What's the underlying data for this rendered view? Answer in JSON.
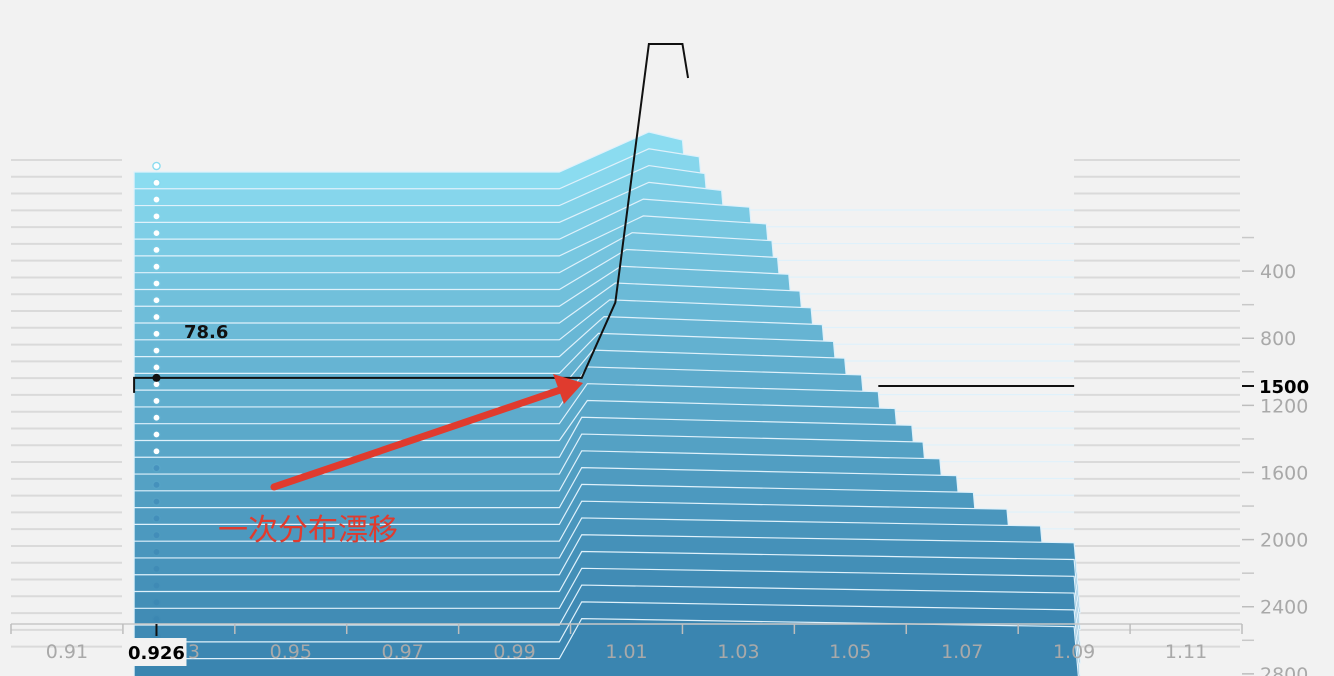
{
  "chart_data": {
    "type": "area",
    "x_ticks": [
      "0.91",
      "0.93",
      "0.95",
      "0.97",
      "0.99",
      "1.01",
      "1.03",
      "1.05",
      "1.07",
      "1.09",
      "1.11"
    ],
    "x_minor_ticks": [
      0.9,
      0.92,
      0.94,
      0.96,
      0.98,
      1.0,
      1.02,
      1.04,
      1.06,
      1.08,
      1.1,
      1.12
    ],
    "xlim": [
      0.9,
      1.12
    ],
    "y_ticks": [
      "400",
      "800",
      "1200",
      "1600",
      "2000",
      "2400",
      "2800"
    ],
    "ylim": [
      0,
      2920
    ],
    "series": [
      {
        "step": 0,
        "left_value": 0.926,
        "right_value": 1.014,
        "peak_value": 1.02
      },
      {
        "step": 100,
        "left_value": 0.926,
        "right_value": 1.014,
        "peak_value": 1.023
      },
      {
        "step": 200,
        "left_value": 0.926,
        "right_value": 1.014,
        "peak_value": 1.024
      },
      {
        "step": 300,
        "left_value": 0.926,
        "right_value": 1.014,
        "peak_value": 1.027
      },
      {
        "step": 400,
        "left_value": 0.926,
        "right_value": 1.013,
        "peak_value": 1.032
      },
      {
        "step": 500,
        "left_value": 0.926,
        "right_value": 1.013,
        "peak_value": 1.035
      },
      {
        "step": 600,
        "left_value": 0.926,
        "right_value": 1.011,
        "peak_value": 1.036
      },
      {
        "step": 700,
        "left_value": 0.926,
        "right_value": 1.01,
        "peak_value": 1.037
      },
      {
        "step": 800,
        "left_value": 0.926,
        "right_value": 1.009,
        "peak_value": 1.039
      },
      {
        "step": 900,
        "left_value": 0.926,
        "right_value": 1.008,
        "peak_value": 1.041
      },
      {
        "step": 1000,
        "left_value": 0.926,
        "right_value": 1.007,
        "peak_value": 1.043
      },
      {
        "step": 1100,
        "left_value": 0.926,
        "right_value": 1.006,
        "peak_value": 1.045
      },
      {
        "step": 1200,
        "left_value": 0.926,
        "right_value": 1.005,
        "peak_value": 1.047
      },
      {
        "step": 1300,
        "left_value": 0.926,
        "right_value": 1.004,
        "peak_value": 1.049
      },
      {
        "step": 1400,
        "left_value": 0.926,
        "right_value": 1.003,
        "peak_value": 1.052
      },
      {
        "step": 1500,
        "left_value": 0.926,
        "right_value": 1.003,
        "peak_value": 1.055
      },
      {
        "step": 1600,
        "left_value": 0.926,
        "right_value": 1.003,
        "peak_value": 1.058
      },
      {
        "step": 1700,
        "left_value": 0.926,
        "right_value": 1.002,
        "peak_value": 1.061
      },
      {
        "step": 1800,
        "left_value": 0.926,
        "right_value": 1.002,
        "peak_value": 1.063
      },
      {
        "step": 1900,
        "left_value": 0.926,
        "right_value": 1.002,
        "peak_value": 1.066
      },
      {
        "step": 2000,
        "left_value": 0.926,
        "right_value": 1.002,
        "peak_value": 1.069
      },
      {
        "step": 2100,
        "left_value": 0.926,
        "right_value": 1.002,
        "peak_value": 1.072
      },
      {
        "step": 2200,
        "left_value": 0.926,
        "right_value": 1.002,
        "peak_value": 1.078
      },
      {
        "step": 2300,
        "left_value": 0.926,
        "right_value": 1.002,
        "peak_value": 1.084
      },
      {
        "step": 2400,
        "left_value": 0.926,
        "right_value": 1.002,
        "peak_value": 1.09
      },
      {
        "step": 2500,
        "left_value": 0.926,
        "right_value": 1.002,
        "peak_value": 1.09
      },
      {
        "step": 2600,
        "left_value": 0.926,
        "right_value": 1.002,
        "peak_value": 1.09
      },
      {
        "step": 2700,
        "left_value": 0.926,
        "right_value": 1.002,
        "peak_value": 1.09
      },
      {
        "step": 2800,
        "left_value": 0.926,
        "right_value": 1.002,
        "peak_value": 1.09
      },
      {
        "step": 2900,
        "left_value": 0.926,
        "right_value": 1.002,
        "peak_value": 1.09
      }
    ],
    "dots_x_value": 0.926,
    "highlight": {
      "step_label": "1500",
      "x_label": "0.926",
      "value_label": "78.6",
      "left_x": 0.922,
      "right_x": 1.002,
      "highlight_step": 1340,
      "outline_peak_x": 1.014,
      "outline_peak_right": 1.02
    },
    "annotation": "一次分布漂移",
    "colors": {
      "top": "#8bdcf0",
      "bottom": "#3a85b0",
      "background": "#f2f2f2",
      "tick_label": "#a9a9a9",
      "annotation": "#e03b2e",
      "edge": "#dff1fb"
    },
    "grid": false,
    "legend": "none"
  }
}
